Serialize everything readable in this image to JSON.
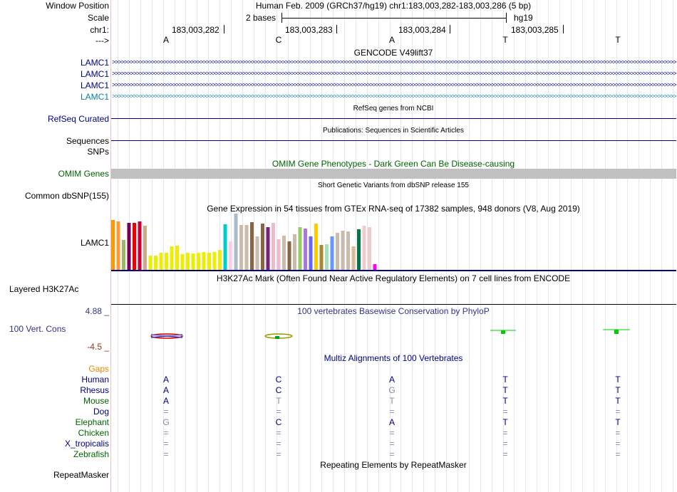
{
  "header": {
    "window_position_label": "Window Position",
    "scale_label": "Scale",
    "chr_label": "chr1:",
    "strand_label": "--->",
    "assembly_position": "Human Feb. 2009 (GRCh37/hg19)   chr1:183,003,282-183,003,286 (5 bp)",
    "scale_text": "2 bases",
    "scale_db": "hg19",
    "coords": [
      "183,003,282",
      "183,003,283",
      "183,003,284",
      "183,003,285"
    ],
    "bases": [
      "A",
      "C",
      "A",
      "T",
      "T"
    ]
  },
  "tracks": {
    "gencode_title": "GENCODE V49lift37",
    "gencode_genes": [
      "LAMC1",
      "LAMC1",
      "LAMC1",
      "LAMC1"
    ],
    "refseq_label": "RefSeq Curated",
    "refseq_title": "RefSeq genes from NCBI",
    "sequences_label": "Sequences",
    "publications_title": "Publications: Sequences in Scientific Articles",
    "snps_label": "SNPs",
    "omim_title": "OMIM Gene Phenotypes - Dark Green Can Be Disease-causing",
    "omim_label": "OMIM Genes",
    "dbsnp_label": "Common dbSNP(155)",
    "dbsnp_title": "Short Genetic Variants from dbSNP release 155",
    "gtex_title": "Gene Expression in 54 tissues from GTEx RNA-seq of 17382 samples, 948 donors (V8, Aug 2019)",
    "gtex_label": "LAMC1",
    "h3k27ac_title": "H3K27Ac Mark (Often Found Near Active Regulatory Elements) on 7 cell lines from ENCODE",
    "h3k27ac_label": "Layered H3K27Ac",
    "cons_max": "4.88 _",
    "cons_title": "100 vertebrates Basewise Conservation by PhyloP",
    "cons_label": "100 Vert. Cons",
    "cons_min": "-4.5 _",
    "multiz_title": "Multiz Alignments of 100 Vertebrates",
    "gaps_label": "Gaps",
    "repeat_title": "Repeating Elements by RepeatMasker",
    "repeat_label": "RepeatMasker"
  },
  "gtex_bars": {
    "colors": [
      "#ff9900",
      "#ff9933",
      "#99bb66",
      "#770055",
      "#ee0000",
      "#cc0033",
      "#ccaa88",
      "#eeee00",
      "#eeee00",
      "#eeee00",
      "#eeee00",
      "#eeee00",
      "#eeee00",
      "#eeee00",
      "#eeee00",
      "#eeee00",
      "#eeee00",
      "#eeee00",
      "#eeee00",
      "#eeee00",
      "#eeee00",
      "#00cccc",
      "#ffccee",
      "#aabbcc",
      "#ccbbaa",
      "#ccbbaa",
      "#886644",
      "#ccbbaa",
      "#886644",
      "#772277",
      "#eebbcc",
      "#eebbcc",
      "#ccbbaa",
      "#886644",
      "#ccbbaa",
      "#99cc66",
      "#aa77dd",
      "#6666ff",
      "#ffcc00",
      "#aa8833",
      "#aaddbb",
      "#6699ff",
      "#ccbbaa",
      "#ccbbaa",
      "#ccbbaa",
      "#ddbb99",
      "#007744",
      "#eecccc",
      "#eecccc",
      "#ff00ff"
    ],
    "values": [
      70,
      68,
      42,
      66,
      66,
      68,
      62,
      20,
      20,
      24,
      24,
      33,
      34,
      22,
      24,
      23,
      24,
      25,
      24,
      25,
      28,
      64,
      40,
      80,
      63,
      63,
      67,
      47,
      65,
      60,
      66,
      43,
      48,
      40,
      50,
      60,
      58,
      47,
      65,
      35,
      36,
      47,
      52,
      55,
      54,
      33,
      57,
      62,
      60,
      8
    ]
  },
  "multiz": {
    "species": [
      "Human",
      "Rhesus",
      "Mouse",
      "Dog",
      "Elephant",
      "Chicken",
      "X_tropicalis",
      "Zebrafish"
    ],
    "species_colors": [
      "#000080",
      "#000080",
      "#006400",
      "#000080",
      "#006400",
      "#006400",
      "#000080",
      "#006400"
    ],
    "rows": [
      [
        "A",
        "C",
        "A",
        "T",
        "T"
      ],
      [
        "A",
        "C",
        "G",
        "T",
        "T"
      ],
      [
        "A",
        "T",
        "T",
        "T",
        "T"
      ],
      [
        "=",
        "=",
        "=",
        "=",
        "="
      ],
      [
        "G",
        "C",
        "A",
        "T",
        "T"
      ],
      [
        "=",
        "=",
        "=",
        "=",
        "="
      ],
      [
        "=",
        "=",
        "=",
        "=",
        "="
      ],
      [
        "=",
        "=",
        "=",
        "=",
        "="
      ]
    ],
    "faded": [
      [
        false,
        false,
        false,
        false,
        false
      ],
      [
        false,
        false,
        true,
        false,
        false
      ],
      [
        false,
        true,
        true,
        false,
        false
      ],
      [
        true,
        true,
        true,
        true,
        true
      ],
      [
        true,
        false,
        false,
        false,
        false
      ],
      [
        true,
        true,
        true,
        true,
        true
      ],
      [
        true,
        true,
        true,
        true,
        true
      ],
      [
        true,
        true,
        true,
        true,
        true
      ]
    ]
  },
  "colors": {
    "gene_blue": "#000080",
    "gene_teal": "#0e7fa6",
    "omim_green": "#006400",
    "cons_blue": "#333388",
    "cons_min_red": "#8b3a1a",
    "gaps_orange": "#e68a00",
    "grid": "#e6e6ee",
    "omim_bar": "#c0c0c0"
  }
}
